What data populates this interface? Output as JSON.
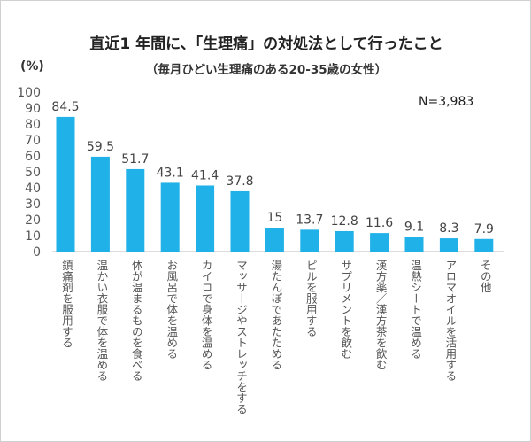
{
  "chart_data": {
    "type": "bar",
    "title": "直近1 年間に、「生理痛」の対処法として行ったこと",
    "subtitle": "（毎月ひどい生理痛のある20-35歳の女性）",
    "ylabel": "(%)",
    "annotation": "N=3,983",
    "ylim": [
      0,
      100
    ],
    "yticks": [
      0,
      10,
      20,
      30,
      40,
      50,
      60,
      70,
      80,
      90,
      100
    ],
    "grid": false,
    "bar_color": "#1fb1e8",
    "categories": [
      "鎮痛剤を服用する",
      "温かい衣服で体を温める",
      "体が温まるものを食べる",
      "お風呂で体を温める",
      "カイロで身体を温める",
      "マッサージやストレッチをする",
      "湯たんぽであたためる",
      "ピルを服用する",
      "サプリメントを飲む",
      "漢方薬／漢方茶を飲む",
      "温熱シートで温める",
      "アロマオイルを活用する",
      "その他"
    ],
    "values": [
      84.5,
      59.5,
      51.7,
      43.1,
      41.4,
      37.8,
      15,
      13.7,
      12.8,
      11.6,
      9.1,
      8.3,
      7.9
    ]
  }
}
